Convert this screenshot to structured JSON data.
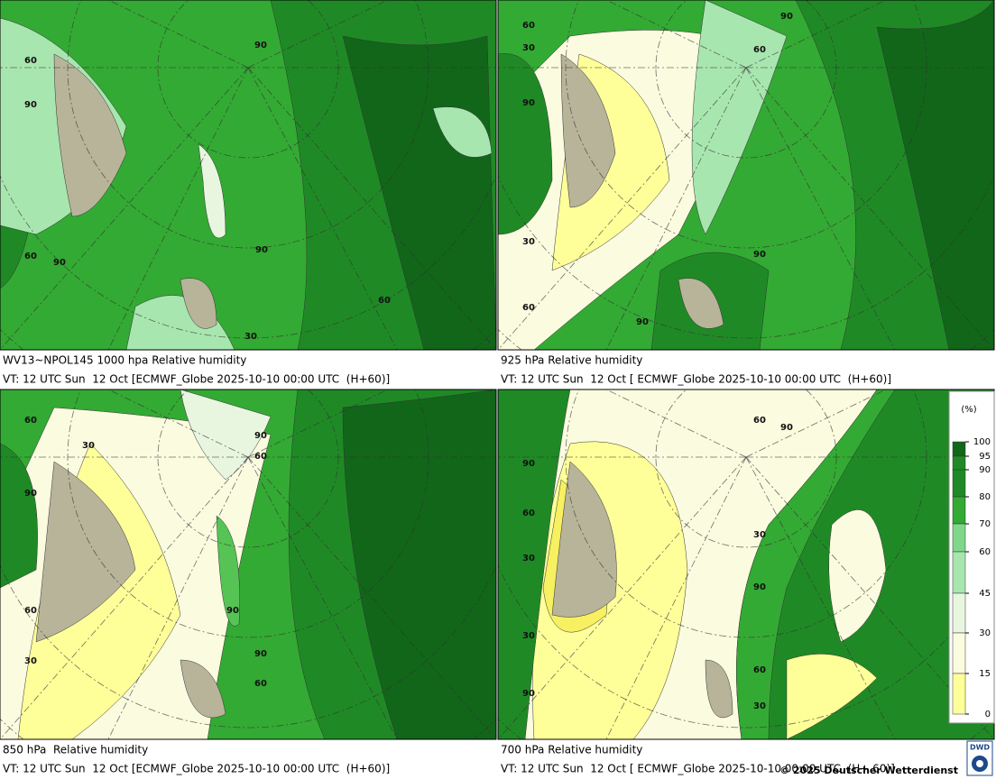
{
  "panels": [
    {
      "title": "WV13~NPOL145 1000 hpa Relative humidity",
      "valid_time": "VT: 12 UTC Sun  12 Oct [ECMWF_Globe 2025-10-10 00:00 UTC  (H+60)]",
      "contour_labels": [
        90,
        60,
        90,
        90,
        60,
        90,
        30,
        60
      ]
    },
    {
      "title": "925 hPa Relative humidity",
      "valid_time": "VT: 12 UTC Sun  12 Oct [ ECMWF_Globe 2025-10-10 00:00 UTC  (H+60)]",
      "contour_labels": [
        60,
        30,
        60,
        90,
        90,
        30,
        90,
        60,
        90
      ]
    },
    {
      "title": "850 hPa  Relative humidity",
      "valid_time": "VT: 12 UTC Sun  12 Oct [ECMWF_Globe 2025-10-10 00:00 UTC  (H+60)]",
      "contour_labels": [
        60,
        30,
        90,
        60,
        90,
        60,
        90,
        90,
        60,
        30
      ]
    },
    {
      "title": "700 hPa Relative humidity",
      "valid_time": "VT: 12 UTC Sun  12 Oct [ ECMWF_Globe 2025-10-10 00:00 UTC  (H+ 60)]",
      "contour_labels": [
        60,
        90,
        90,
        60,
        30,
        30,
        90,
        30,
        90,
        60,
        30
      ]
    }
  ],
  "legend": {
    "unit": "(%)",
    "levels": [
      100,
      95,
      90,
      80,
      70,
      60,
      45,
      30,
      15,
      0
    ]
  },
  "footer": {
    "copyright": "© 2025 Deutscher Wetterdienst",
    "logo": "DWD"
  }
}
